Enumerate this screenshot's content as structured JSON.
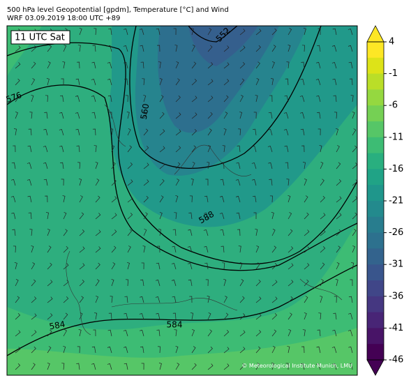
{
  "header": {
    "title": "500 hPa level Geopotential [gpdm], Temperature [°C] and Wind",
    "subtitle": "WRF 03.09.2019 18:00 UTC +89"
  },
  "map": {
    "time_label": "11 UTC Sat",
    "contour_labels": [
      576,
      560,
      552,
      588,
      584,
      584
    ],
    "credit": "© Meteorological Institute Munich, LMU"
  },
  "colorbar": {
    "ticks": [
      4,
      -1,
      -6,
      -11,
      -16,
      -21,
      -26,
      -31,
      -36,
      -41,
      -46
    ],
    "colors": [
      "#440154",
      "#481467",
      "#482576",
      "#453781",
      "#404688",
      "#39558c",
      "#33638d",
      "#2d718e",
      "#287d8e",
      "#238a8d",
      "#1f968b",
      "#20a386",
      "#29af7f",
      "#3dbc74",
      "#56c667",
      "#75d054",
      "#95d840",
      "#bade28",
      "#dde318",
      "#fde725"
    ]
  }
}
